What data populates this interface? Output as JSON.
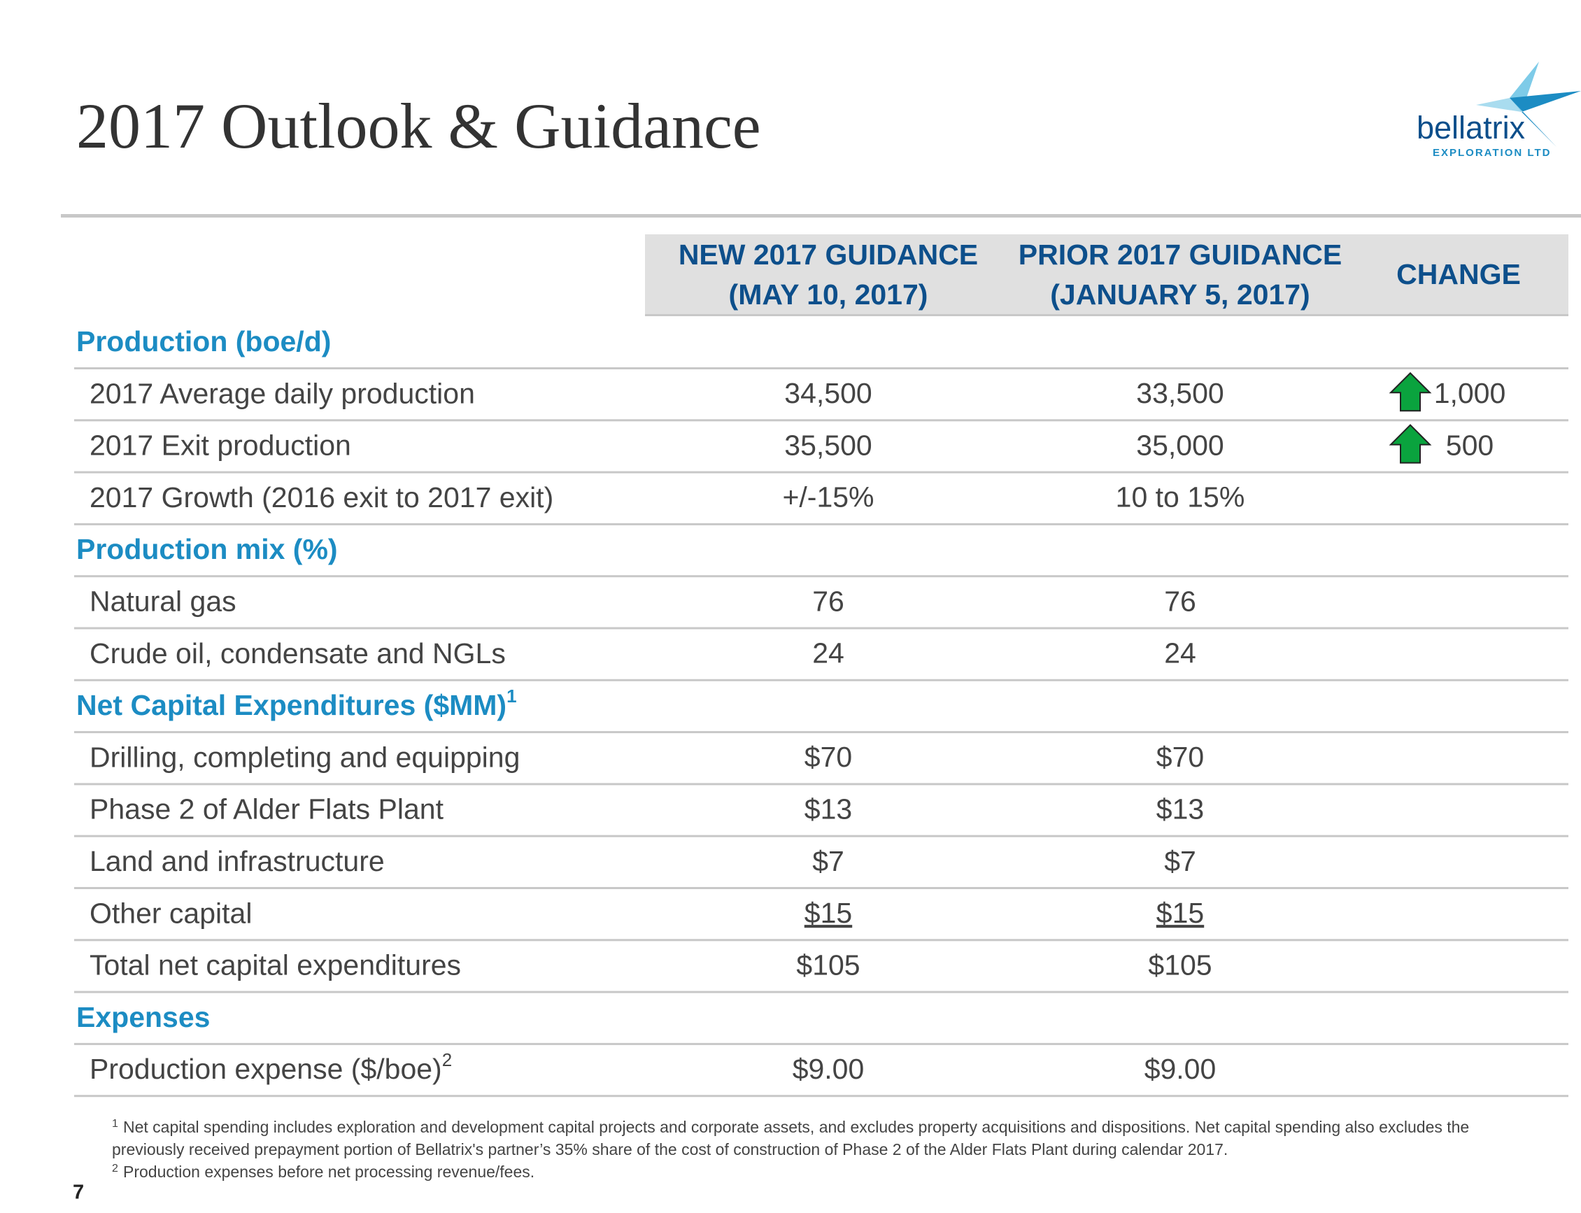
{
  "header": {
    "title": "2017 Outlook & Guidance",
    "logo": {
      "name": "bellatrix",
      "tagline": "EXPLORATION LTD"
    }
  },
  "table": {
    "columns": [
      {
        "lines": [
          "NEW 2017 GUIDANCE",
          "(MAY 10, 2017)"
        ]
      },
      {
        "lines": [
          "PRIOR 2017 GUIDANCE",
          "(JANUARY 5, 2017)"
        ]
      },
      {
        "lines": [
          "CHANGE"
        ]
      }
    ],
    "sections": [
      {
        "title": "Production (boe/d)",
        "rows": [
          {
            "label": "2017 Average daily production",
            "new": "34,500",
            "prior": "33,500",
            "change": "1,000"
          },
          {
            "label": "2017 Exit production",
            "new": "35,500",
            "prior": "35,000",
            "change": "500"
          },
          {
            "label": "2017 Growth (2016 exit to 2017 exit)",
            "new": "+/-15%",
            "prior": "10 to 15%"
          }
        ]
      },
      {
        "title": "Production mix (%)",
        "rows": [
          {
            "label": "Natural gas",
            "new": "76",
            "prior": "76"
          },
          {
            "label": "Crude oil, condensate and NGLs",
            "new": "24",
            "prior": "24"
          }
        ]
      },
      {
        "title": "Net Capital Expenditures ($MM)",
        "sup": "1",
        "rows": [
          {
            "label": "Drilling, completing and equipping",
            "new": "$70",
            "prior": "$70"
          },
          {
            "label": "Phase 2 of Alder Flats Plant",
            "new": "$13",
            "prior": "$13"
          },
          {
            "label": "Land and infrastructure",
            "new": "$7",
            "prior": "$7"
          },
          {
            "label": "Other capital",
            "new": "$15",
            "prior": "$15",
            "underline": true
          },
          {
            "label": "Total net capital expenditures",
            "new": "$105",
            "prior": "$105"
          }
        ]
      },
      {
        "title": "Expenses",
        "rows": [
          {
            "label": "Production expense ($/boe)",
            "sup": "2",
            "new": "$9.00",
            "prior": "$9.00"
          }
        ]
      }
    ]
  },
  "footnotes": [
    {
      "marker": "1",
      "lines": [
        "Net capital spending includes exploration and development capital projects and corporate assets, and excludes property acquisitions and dispositions. Net capital spending also excludes the",
        "previously received prepayment portion of Bellatrix's partner’s 35% share of the cost of construction of Phase 2 of the Alder Flats Plant during calendar 2017."
      ]
    },
    {
      "marker": "2",
      "lines": [
        "Production expenses before net processing revenue/fees."
      ]
    }
  ],
  "page_number": "7"
}
